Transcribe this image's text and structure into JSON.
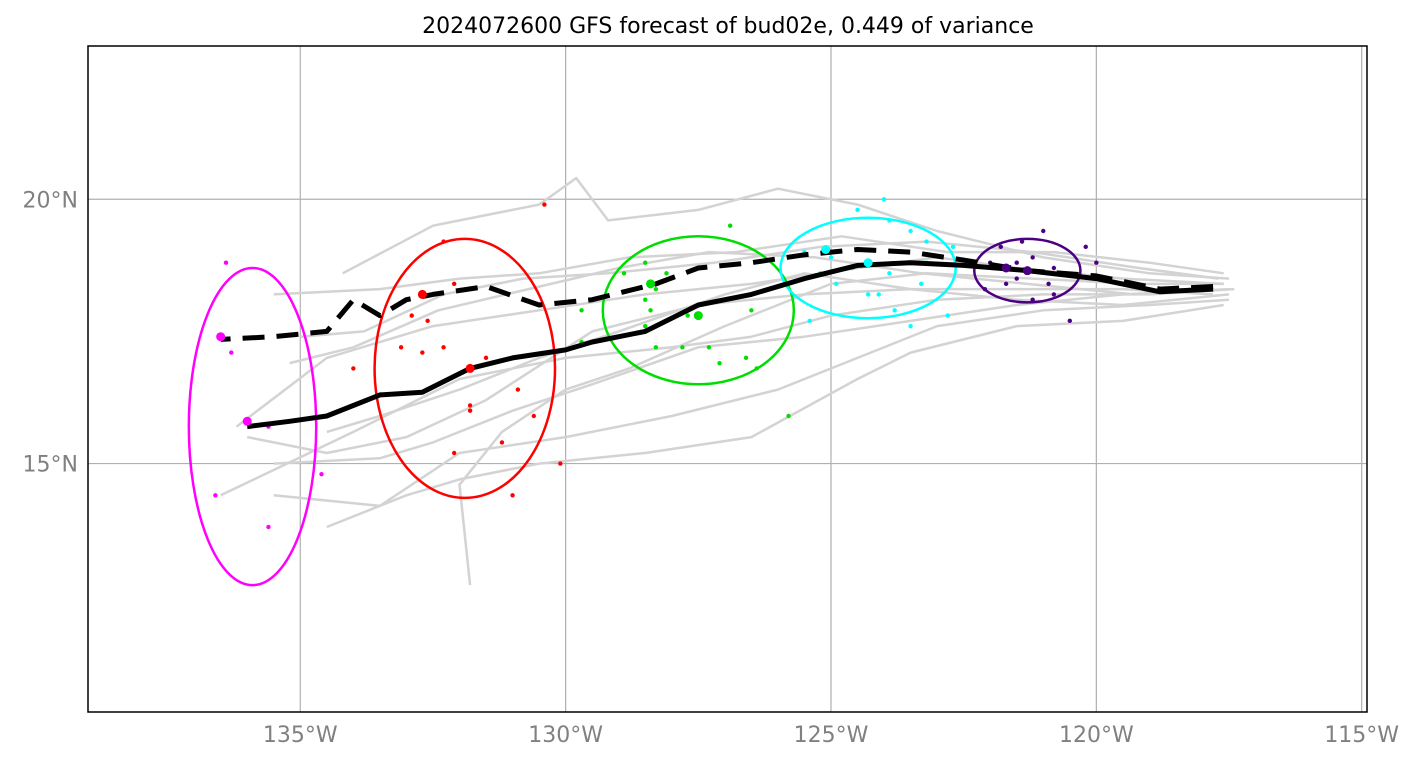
{
  "chart_data": {
    "type": "line",
    "title": "2024072600 GFS forecast of bud02e, 0.449 of variance",
    "xlim": [
      -139.0,
      -114.9
    ],
    "ylim": [
      10.3,
      22.9
    ],
    "x_ticks": [
      {
        "value": -135,
        "label": "135°W"
      },
      {
        "value": -130,
        "label": "130°W"
      },
      {
        "value": -125,
        "label": "125°W"
      },
      {
        "value": -120,
        "label": "120°W"
      },
      {
        "value": -115,
        "label": "115°W"
      }
    ],
    "y_ticks": [
      {
        "value": 20,
        "label": "20°N"
      },
      {
        "value": 15,
        "label": "15°N"
      }
    ],
    "grid": true,
    "colors": {
      "ensemble": "#d3d3d3",
      "mean_track": "#000000",
      "axes": "#000000",
      "grid": "#b0b0b0",
      "tick_labels": "#808080",
      "magenta": "#ff00ff",
      "red": "#ff0000",
      "green": "#00dd00",
      "cyan": "#00ffff",
      "indigo": "#4b0082"
    },
    "ensemble_tracks": [
      [
        [
          -117.5,
          18.5
        ],
        [
          -119.0,
          18.6
        ],
        [
          -121.0,
          18.9
        ],
        [
          -123.0,
          19.4
        ],
        [
          -124.5,
          19.9
        ],
        [
          -126.0,
          20.2
        ],
        [
          -127.5,
          19.8
        ],
        [
          -129.2,
          19.6
        ],
        [
          -129.8,
          20.4
        ],
        [
          -130.5,
          19.9
        ],
        [
          -132.5,
          19.5
        ],
        [
          -134.2,
          18.6
        ]
      ],
      [
        [
          -117.6,
          18.4
        ],
        [
          -119.5,
          18.5
        ],
        [
          -121.5,
          18.7
        ],
        [
          -123.0,
          18.9
        ],
        [
          -124.5,
          18.7
        ],
        [
          -126.5,
          18.4
        ],
        [
          -128.5,
          18.2
        ],
        [
          -130.5,
          17.9
        ],
        [
          -132.5,
          17.6
        ],
        [
          -134.5,
          17.0
        ],
        [
          -136.2,
          15.7
        ]
      ],
      [
        [
          -117.4,
          18.3
        ],
        [
          -119.0,
          18.2
        ],
        [
          -121.0,
          18.2
        ],
        [
          -123.0,
          18.1
        ],
        [
          -125.0,
          17.8
        ],
        [
          -126.5,
          17.4
        ],
        [
          -128.0,
          17.2
        ],
        [
          -130.0,
          17.0
        ],
        [
          -132.0,
          16.6
        ],
        [
          -134.0,
          15.6
        ],
        [
          -136.5,
          14.4
        ]
      ],
      [
        [
          -117.5,
          18.1
        ],
        [
          -119.0,
          18.0
        ],
        [
          -121.0,
          17.9
        ],
        [
          -123.0,
          17.6
        ],
        [
          -124.5,
          17.0
        ],
        [
          -126.0,
          16.4
        ],
        [
          -128.0,
          15.9
        ],
        [
          -130.0,
          15.5
        ],
        [
          -132.0,
          15.2
        ],
        [
          -133.5,
          14.2
        ],
        [
          -135.5,
          14.4
        ]
      ],
      [
        [
          -117.6,
          18.0
        ],
        [
          -119.5,
          17.7
        ],
        [
          -121.5,
          17.6
        ],
        [
          -123.5,
          17.1
        ],
        [
          -124.5,
          16.6
        ],
        [
          -126.5,
          15.5
        ],
        [
          -128.5,
          15.2
        ],
        [
          -130.5,
          15.0
        ],
        [
          -132.0,
          14.7
        ],
        [
          -133.0,
          14.4
        ],
        [
          -134.5,
          13.8
        ]
      ],
      [
        [
          -117.8,
          18.2
        ],
        [
          -119.5,
          18.3
        ],
        [
          -121.5,
          18.3
        ],
        [
          -123.5,
          18.3
        ],
        [
          -125.5,
          18.2
        ],
        [
          -127.5,
          18.0
        ],
        [
          -129.5,
          17.5
        ],
        [
          -131.5,
          16.2
        ],
        [
          -133.0,
          15.5
        ],
        [
          -134.5,
          15.2
        ],
        [
          -136.0,
          15.5
        ]
      ],
      [
        [
          -117.7,
          18.5
        ],
        [
          -119.2,
          18.7
        ],
        [
          -121.2,
          19.0
        ],
        [
          -123.2,
          19.2
        ],
        [
          -125.2,
          19.1
        ],
        [
          -127.2,
          18.8
        ],
        [
          -129.2,
          18.6
        ],
        [
          -130.8,
          18.5
        ],
        [
          -132.3,
          18.2
        ],
        [
          -133.8,
          17.5
        ],
        [
          -135.0,
          17.4
        ]
      ],
      [
        [
          -117.5,
          18.2
        ],
        [
          -119.5,
          18.0
        ],
        [
          -121.5,
          18.1
        ],
        [
          -123.5,
          18.3
        ],
        [
          -125.5,
          18.6
        ],
        [
          -127.0,
          18.2
        ],
        [
          -129.0,
          17.5
        ],
        [
          -130.5,
          17.0
        ],
        [
          -132.0,
          16.4
        ],
        [
          -133.5,
          15.9
        ],
        [
          -134.5,
          15.6
        ]
      ],
      [
        [
          -117.8,
          18.3
        ],
        [
          -119.3,
          18.2
        ],
        [
          -121.3,
          18.4
        ],
        [
          -123.3,
          18.6
        ],
        [
          -125.3,
          18.9
        ],
        [
          -127.3,
          19.0
        ],
        [
          -129.0,
          18.7
        ],
        [
          -130.7,
          18.3
        ],
        [
          -132.4,
          17.9
        ],
        [
          -134.0,
          17.2
        ],
        [
          -135.2,
          16.9
        ]
      ],
      [
        [
          -117.6,
          18.4
        ],
        [
          -119.2,
          18.4
        ],
        [
          -121.2,
          18.5
        ],
        [
          -123.2,
          18.6
        ],
        [
          -125.0,
          18.4
        ],
        [
          -127.0,
          17.6
        ],
        [
          -128.8,
          16.8
        ],
        [
          -130.0,
          16.4
        ],
        [
          -131.2,
          15.6
        ],
        [
          -132.0,
          14.6
        ],
        [
          -131.8,
          12.7
        ]
      ],
      [
        [
          -117.5,
          18.3
        ],
        [
          -119.5,
          18.2
        ],
        [
          -121.5,
          18.0
        ],
        [
          -123.5,
          17.7
        ],
        [
          -125.5,
          17.4
        ],
        [
          -127.5,
          17.2
        ],
        [
          -129.5,
          16.5
        ],
        [
          -131.0,
          16.0
        ],
        [
          -132.5,
          15.4
        ],
        [
          -133.5,
          15.1
        ],
        [
          -135.5,
          15.0
        ]
      ],
      [
        [
          -117.6,
          18.6
        ],
        [
          -119.0,
          18.8
        ],
        [
          -120.8,
          19.0
        ],
        [
          -122.8,
          19.0
        ],
        [
          -124.8,
          19.3
        ],
        [
          -126.8,
          19.0
        ],
        [
          -128.8,
          18.9
        ],
        [
          -130.5,
          18.6
        ],
        [
          -132.0,
          18.5
        ],
        [
          -133.5,
          18.3
        ],
        [
          -135.5,
          18.2
        ]
      ]
    ],
    "mean_track_solid": [
      [
        -117.8,
        18.3
      ],
      [
        -118.8,
        18.25
      ],
      [
        -120.0,
        18.5
      ],
      [
        -121.3,
        18.65
      ],
      [
        -122.5,
        18.75
      ],
      [
        -123.5,
        18.8
      ],
      [
        -124.5,
        18.75
      ],
      [
        -125.5,
        18.5
      ],
      [
        -126.5,
        18.2
      ],
      [
        -127.5,
        18.0
      ],
      [
        -128.5,
        17.5
      ],
      [
        -129.5,
        17.3
      ],
      [
        -130.0,
        17.15
      ],
      [
        -131.0,
        17.0
      ],
      [
        -131.8,
        16.8
      ],
      [
        -132.7,
        16.35
      ],
      [
        -133.5,
        16.3
      ],
      [
        -134.5,
        15.9
      ],
      [
        -135.2,
        15.8
      ],
      [
        -136.0,
        15.7
      ]
    ],
    "mean_track_dashed": [
      [
        -117.8,
        18.35
      ],
      [
        -118.8,
        18.3
      ],
      [
        -120.0,
        18.55
      ],
      [
        -121.3,
        18.65
      ],
      [
        -122.5,
        18.85
      ],
      [
        -123.5,
        19.0
      ],
      [
        -124.5,
        19.05
      ],
      [
        -125.5,
        18.95
      ],
      [
        -126.5,
        18.8
      ],
      [
        -127.5,
        18.7
      ],
      [
        -128.3,
        18.4
      ],
      [
        -129.5,
        18.1
      ],
      [
        -130.5,
        18.0
      ],
      [
        -131.5,
        18.35
      ],
      [
        -132.5,
        18.2
      ],
      [
        -133.0,
        18.1
      ],
      [
        -133.5,
        17.8
      ],
      [
        -134.0,
        18.1
      ],
      [
        -134.5,
        17.5
      ],
      [
        -135.5,
        17.4
      ],
      [
        -136.5,
        17.35
      ]
    ],
    "groups": [
      {
        "color": "#ff00ff",
        "ellipse": {
          "cx": -135.9,
          "cy": 15.7,
          "rx": 1.2,
          "ry": 3.0,
          "angle": 0
        },
        "mean_points": [
          [
            -136.5,
            17.4
          ],
          [
            -136.0,
            15.8
          ]
        ],
        "points": [
          [
            -136.4,
            18.8
          ],
          [
            -136.3,
            17.1
          ],
          [
            -135.6,
            15.7
          ],
          [
            -134.6,
            14.8
          ],
          [
            -136.6,
            14.4
          ],
          [
            -135.6,
            13.8
          ]
        ]
      },
      {
        "color": "#ff0000",
        "ellipse": {
          "cx": -131.9,
          "cy": 16.8,
          "rx": 1.7,
          "ry": 2.45,
          "angle": 0
        },
        "mean_points": [
          [
            -132.7,
            18.2
          ],
          [
            -131.8,
            16.8
          ]
        ],
        "points": [
          [
            -130.4,
            19.9
          ],
          [
            -132.3,
            19.2
          ],
          [
            -132.1,
            18.4
          ],
          [
            -132.9,
            17.8
          ],
          [
            -132.6,
            17.7
          ],
          [
            -133.1,
            17.2
          ],
          [
            -132.7,
            17.1
          ],
          [
            -132.3,
            17.2
          ],
          [
            -131.5,
            17.0
          ],
          [
            -134.0,
            16.8
          ],
          [
            -130.9,
            16.4
          ],
          [
            -131.8,
            16.1
          ],
          [
            -131.8,
            16.0
          ],
          [
            -130.6,
            15.9
          ],
          [
            -131.2,
            15.4
          ],
          [
            -132.1,
            15.2
          ],
          [
            -130.1,
            15.0
          ],
          [
            -131.0,
            14.4
          ]
        ]
      },
      {
        "color": "#00dd00",
        "ellipse": {
          "cx": -127.5,
          "cy": 17.9,
          "rx": 1.8,
          "ry": 1.4,
          "angle": 0
        },
        "mean_points": [
          [
            -128.4,
            18.4
          ],
          [
            -127.5,
            17.8
          ]
        ],
        "points": [
          [
            -126.9,
            19.5
          ],
          [
            -128.9,
            18.6
          ],
          [
            -128.5,
            18.8
          ],
          [
            -128.1,
            18.6
          ],
          [
            -128.3,
            18.3
          ],
          [
            -127.0,
            18.1
          ],
          [
            -128.5,
            18.1
          ],
          [
            -129.7,
            17.9
          ],
          [
            -128.4,
            17.9
          ],
          [
            -127.7,
            17.8
          ],
          [
            -126.5,
            17.9
          ],
          [
            -128.5,
            17.6
          ],
          [
            -127.8,
            17.2
          ],
          [
            -127.3,
            17.2
          ],
          [
            -129.7,
            17.3
          ],
          [
            -128.3,
            17.2
          ],
          [
            -126.6,
            17.0
          ],
          [
            -127.1,
            16.9
          ],
          [
            -126.4,
            16.8
          ],
          [
            -125.8,
            15.9
          ]
        ]
      },
      {
        "color": "#00ffff",
        "ellipse": {
          "cx": -124.3,
          "cy": 18.7,
          "rx": 1.65,
          "ry": 0.95,
          "angle": 0
        },
        "mean_points": [
          [
            -125.1,
            19.05
          ],
          [
            -124.3,
            18.8
          ]
        ],
        "points": [
          [
            -124.0,
            20.0
          ],
          [
            -124.5,
            19.8
          ],
          [
            -123.9,
            19.6
          ],
          [
            -123.5,
            19.4
          ],
          [
            -123.2,
            19.2
          ],
          [
            -122.7,
            19.1
          ],
          [
            -125.5,
            19.0
          ],
          [
            -125.0,
            18.9
          ],
          [
            -123.2,
            18.8
          ],
          [
            -124.6,
            18.7
          ],
          [
            -125.2,
            18.6
          ],
          [
            -123.9,
            18.6
          ],
          [
            -124.9,
            18.4
          ],
          [
            -123.3,
            18.4
          ],
          [
            -124.1,
            18.2
          ],
          [
            -124.3,
            18.2
          ],
          [
            -125.4,
            17.7
          ],
          [
            -123.8,
            17.9
          ],
          [
            -123.5,
            17.6
          ],
          [
            -122.8,
            17.8
          ]
        ]
      },
      {
        "color": "#4b0082",
        "ellipse": {
          "cx": -121.3,
          "cy": 18.65,
          "rx": 1.0,
          "ry": 0.6,
          "angle": 0
        },
        "mean_points": [
          [
            -121.7,
            18.7
          ],
          [
            -121.3,
            18.65
          ]
        ],
        "points": [
          [
            -121.0,
            19.4
          ],
          [
            -121.4,
            19.2
          ],
          [
            -120.2,
            19.1
          ],
          [
            -121.8,
            19.1
          ],
          [
            -120.0,
            18.8
          ],
          [
            -121.2,
            18.9
          ],
          [
            -122.0,
            18.8
          ],
          [
            -121.5,
            18.8
          ],
          [
            -120.8,
            18.7
          ],
          [
            -120.6,
            18.6
          ],
          [
            -121.5,
            18.5
          ],
          [
            -120.9,
            18.4
          ],
          [
            -121.7,
            18.4
          ],
          [
            -122.1,
            18.3
          ],
          [
            -120.8,
            18.2
          ],
          [
            -121.2,
            18.1
          ],
          [
            -120.5,
            17.7
          ]
        ]
      }
    ]
  }
}
